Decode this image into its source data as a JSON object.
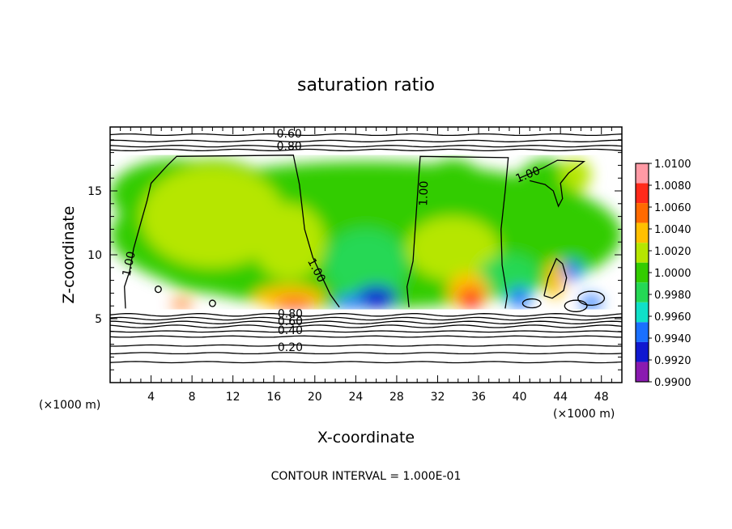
{
  "chart_data": {
    "type": "heatmap",
    "title": "saturation ratio",
    "xlabel": "X-coordinate",
    "ylabel": "Z-coordinate",
    "x_unit": "(×1000 m)",
    "y_unit": "(×1000 m)",
    "xlim": [
      0,
      50
    ],
    "ylim": [
      0,
      20
    ],
    "x_ticks": [
      4,
      8,
      12,
      16,
      20,
      24,
      28,
      32,
      36,
      40,
      44,
      48
    ],
    "x_tick_labels": [
      "4",
      "8",
      "12",
      "16",
      "20",
      "24",
      "28",
      "32",
      "36",
      "40",
      "44",
      "48"
    ],
    "y_ticks": [
      5,
      10,
      15
    ],
    "y_tick_labels": [
      "5",
      "10",
      "15"
    ],
    "footer": "CONTOUR INTERVAL = 1.000E-01",
    "colorbar": {
      "levels": [
        "1.0100",
        "1.0080",
        "1.0060",
        "1.0040",
        "1.0020",
        "1.0000",
        "0.9980",
        "0.9960",
        "0.9940",
        "0.9920",
        "0.9900"
      ],
      "colors": [
        "#ff9aa5",
        "#ff2a1a",
        "#ff6a00",
        "#ffc000",
        "#b6e600",
        "#33cc00",
        "#25d855",
        "#10e0c8",
        "#1a70ff",
        "#1018d0",
        "#8a1ab0"
      ]
    },
    "contour_labels": [
      {
        "text": "0.60",
        "x": 17.5,
        "y": 19.5
      },
      {
        "text": "0.80",
        "x": 17.5,
        "y": 18.5
      },
      {
        "text": "1.00",
        "x": 1.8,
        "y": 9.3,
        "angle": -78
      },
      {
        "text": "1.00",
        "x": 20.2,
        "y": 8.8,
        "angle": 62
      },
      {
        "text": "1.00",
        "x": 30.6,
        "y": 14.8,
        "angle": -88
      },
      {
        "text": "1.00",
        "x": 40.8,
        "y": 16.3,
        "angle": -22
      },
      {
        "text": "0.80",
        "x": 17.6,
        "y": 5.4
      },
      {
        "text": "0.60",
        "x": 17.6,
        "y": 4.8
      },
      {
        "text": "0.40",
        "x": 17.6,
        "y": 4.1
      },
      {
        "text": "0.20",
        "x": 17.6,
        "y": 2.8
      }
    ],
    "domain_top": 18.0,
    "terrain_z": 5.6,
    "regions": [
      {
        "x": [
          0,
          50
        ],
        "z": [
          5.8,
          17.3
        ],
        "value": 0.9998
      },
      {
        "x": [
          0,
          13
        ],
        "z": [
          12,
          17.5
        ],
        "value": 0.9996
      },
      {
        "x": [
          2,
          18
        ],
        "z": [
          7,
          17.5
        ],
        "value": 1.0
      },
      {
        "x": [
          3,
          17
        ],
        "z": [
          9,
          17
        ],
        "value": 1.0008
      },
      {
        "x": [
          6,
          13
        ],
        "z": [
          11,
          16
        ],
        "value": 1.0012
      },
      {
        "x": [
          14,
          21
        ],
        "z": [
          8,
          14
        ],
        "value": 1.001
      },
      {
        "x": [
          29,
          38
        ],
        "z": [
          8,
          17.5
        ],
        "value": 1.0
      },
      {
        "x": [
          29,
          38
        ],
        "z": [
          8,
          13
        ],
        "value": 1.0006
      },
      {
        "x": [
          39,
          46
        ],
        "z": [
          10,
          17.5
        ],
        "value": 1.0
      },
      {
        "x": [
          21,
          29
        ],
        "z": [
          6.5,
          12
        ],
        "value": 0.997
      },
      {
        "x": [
          36,
          42
        ],
        "z": [
          6.5,
          10
        ],
        "value": 0.997
      },
      {
        "x": [
          24,
          28
        ],
        "z": [
          5.8,
          7.6
        ],
        "value": 0.992
      },
      {
        "x": [
          22,
          25
        ],
        "z": [
          5.8,
          6.8
        ],
        "value": 0.9935
      },
      {
        "x": [
          39,
          41
        ],
        "z": [
          5.8,
          7.5
        ],
        "value": 0.9935
      },
      {
        "x": [
          46,
          48
        ],
        "z": [
          5.7,
          6.8
        ],
        "value": 0.9925
      },
      {
        "x": [
          44,
          46
        ],
        "z": [
          8,
          9.5
        ],
        "value": 0.994
      },
      {
        "x": [
          14,
          21
        ],
        "z": [
          5.8,
          7.6
        ],
        "value": 1.004
      },
      {
        "x": [
          16,
          20
        ],
        "z": [
          5.8,
          6.6
        ],
        "value": 1.0075
      },
      {
        "x": [
          6,
          8
        ],
        "z": [
          5.8,
          6.5
        ],
        "value": 1.006
      },
      {
        "x": [
          33,
          37
        ],
        "z": [
          5.8,
          8.6
        ],
        "value": 1.004
      },
      {
        "x": [
          34,
          36.5
        ],
        "z": [
          5.8,
          7.4
        ],
        "value": 1.008
      },
      {
        "x": [
          42.6,
          44.4
        ],
        "z": [
          6.6,
          9.6
        ],
        "value": 1.004
      },
      {
        "x": [
          44,
          47
        ],
        "z": [
          15,
          17.5
        ],
        "value": 1.001
      }
    ]
  }
}
